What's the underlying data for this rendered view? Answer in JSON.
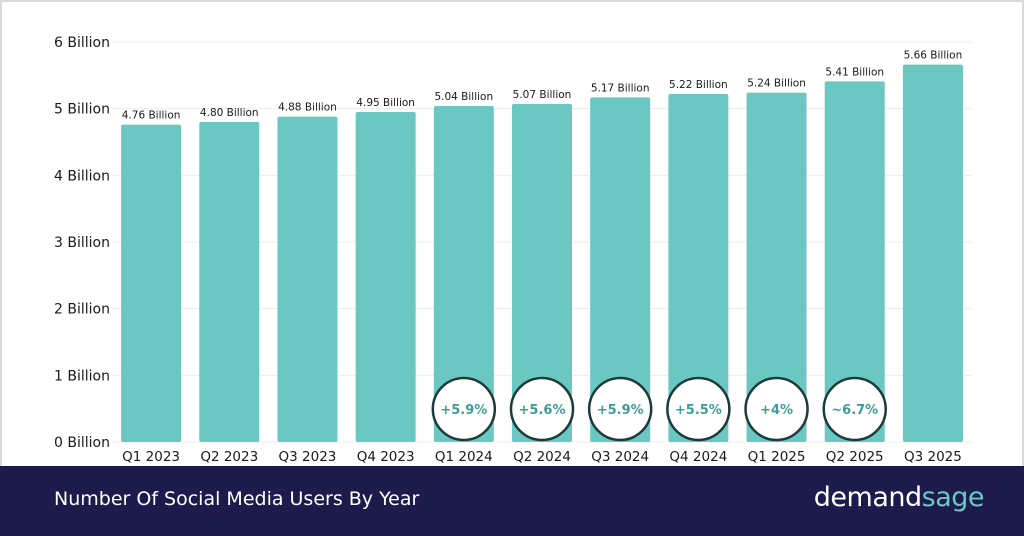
{
  "chart_data": {
    "type": "bar",
    "categories": [
      "Q1 2023",
      "Q2 2023",
      "Q3 2023",
      "Q4 2023",
      "Q1 2024",
      "Q2 2024",
      "Q3 2024",
      "Q4 2024",
      "Q1 2025",
      "Q2 2025",
      "Q3 2025"
    ],
    "values": [
      4.76,
      4.8,
      4.88,
      4.95,
      5.04,
      5.07,
      5.17,
      5.22,
      5.24,
      5.41,
      5.66
    ],
    "data_labels": [
      "4.76 Billion",
      "4.80 Billion",
      "4.88 Billion",
      "4.95 Billion",
      "5.04 Billion",
      "5.07 Billion",
      "5.17 Billion",
      "5.22 Billion",
      "5.24 Billion",
      "5.41 Billion",
      "5.66 Billion"
    ],
    "y_ticks": [
      {
        "value": 0,
        "label": "0 Billion"
      },
      {
        "value": 1,
        "label": "1 Billion"
      },
      {
        "value": 2,
        "label": "2 Billion"
      },
      {
        "value": 3,
        "label": "3 Billion"
      },
      {
        "value": 4,
        "label": "4 Billion"
      },
      {
        "value": 5,
        "label": "5 Billion"
      },
      {
        "value": 6,
        "label": "6 Billion"
      }
    ],
    "ylim": [
      0,
      6
    ],
    "grid": true,
    "annotations": [
      {
        "category": "Q1 2024",
        "text": "+5.9%"
      },
      {
        "category": "Q2 2024",
        "text": "+5.6%"
      },
      {
        "category": "Q3 2024",
        "text": "+5.9%"
      },
      {
        "category": "Q4 2024",
        "text": "+5.5%"
      },
      {
        "category": "Q1 2025",
        "text": "+4%"
      },
      {
        "category": "Q2 2025",
        "text": "~6.7%"
      }
    ],
    "colors": {
      "bar": "#6ac7c2",
      "annotation_text": "#3f9c97",
      "grid": "#ececec"
    }
  },
  "footer": {
    "title": "Number Of Social Media Users By Year",
    "brand_part1": "demand",
    "brand_part2": "sage"
  }
}
